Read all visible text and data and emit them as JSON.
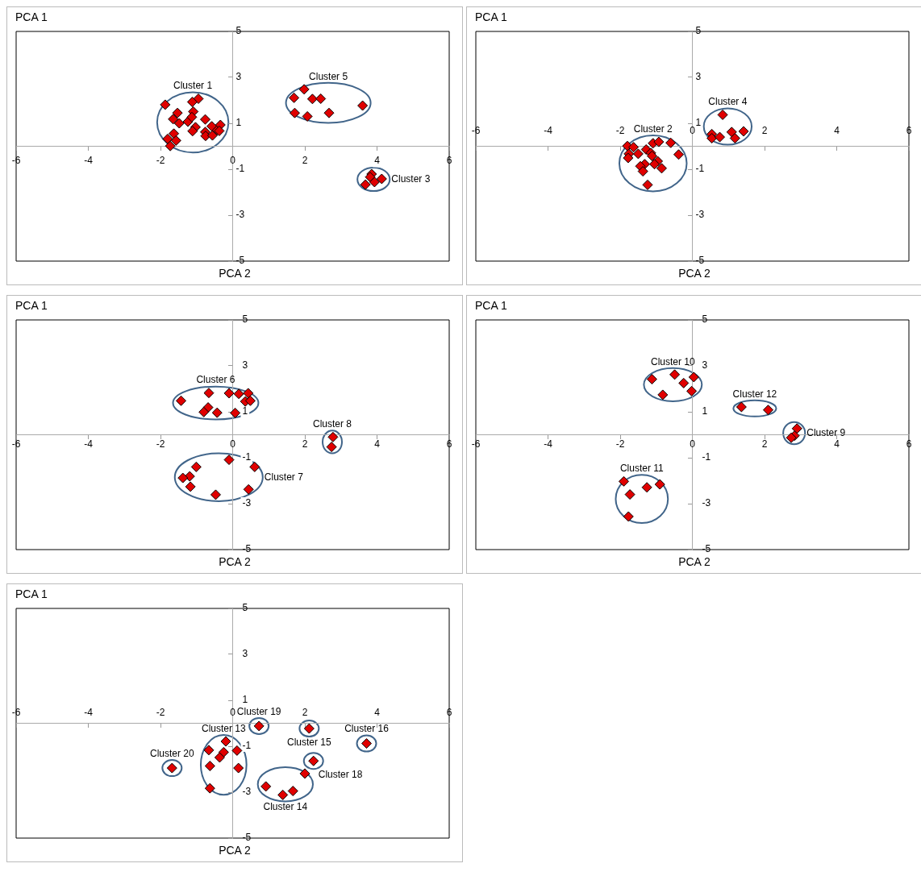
{
  "chart_data": [
    {
      "type": "scatter",
      "xlabel": "PCA 2",
      "ylabel": "PCA 1",
      "xlim": [
        -6,
        6
      ],
      "ylim": [
        -5,
        5
      ],
      "xticks": [
        -6,
        -4,
        -2,
        0,
        2,
        4,
        6
      ],
      "yticks": [
        -5,
        -3,
        -1,
        1,
        3,
        5
      ],
      "marker": "diamond",
      "legend": false,
      "grid": false,
      "series": [
        {
          "name": "Cluster 1",
          "color": "#e00000",
          "x": [
            -1.87,
            -0.95,
            -1.12,
            -1.53,
            -1.09,
            -1.65,
            -1.48,
            -1.24,
            -1.13,
            -0.76,
            -1.03,
            -1.11,
            -1.63,
            -1.8,
            -1.57,
            -1.73,
            -0.76,
            -0.75,
            -0.58,
            -0.56,
            -0.43,
            -0.34,
            -0.37
          ],
          "values": [
            1.81,
            2.07,
            1.93,
            1.45,
            1.51,
            1.18,
            1.0,
            1.07,
            1.27,
            1.17,
            0.83,
            0.66,
            0.55,
            0.32,
            0.25,
            0.01,
            0.62,
            0.45,
            0.87,
            0.47,
            0.7,
            0.93,
            0.67
          ]
        },
        {
          "name": "Cluster 5",
          "color": "#e00000",
          "x": [
            1.7,
            1.98,
            2.21,
            2.44,
            3.6,
            1.72,
            2.07,
            2.67
          ],
          "values": [
            2.11,
            2.48,
            2.06,
            2.07,
            1.77,
            1.45,
            1.3,
            1.45
          ]
        },
        {
          "name": "Cluster 3",
          "color": "#e00000",
          "x": [
            3.85,
            3.81,
            4.13,
            3.93,
            3.68
          ],
          "values": [
            -1.21,
            -1.34,
            -1.42,
            -1.56,
            -1.67
          ]
        }
      ]
    },
    {
      "type": "scatter",
      "xlabel": "PCA 2",
      "ylabel": "PCA 1",
      "xlim": [
        -6,
        6
      ],
      "ylim": [
        -5,
        5
      ],
      "xticks": [
        -6,
        -4,
        -2,
        0,
        2,
        4,
        6
      ],
      "yticks": [
        -5,
        -3,
        -1,
        1,
        3,
        5
      ],
      "marker": "diamond",
      "legend": false,
      "grid": false,
      "series": [
        {
          "name": "Cluster 2",
          "color": "#e00000",
          "x": [
            -1.8,
            -1.63,
            -1.76,
            -1.78,
            -1.5,
            -1.28,
            -1.09,
            -0.93,
            -0.6,
            -1.15,
            -1.12,
            -0.96,
            -0.85,
            -1.05,
            -1.32,
            -1.44,
            -1.37,
            -0.38,
            -1.24
          ],
          "values": [
            0.01,
            -0.04,
            -0.33,
            -0.51,
            -0.33,
            -0.14,
            0.13,
            0.19,
            0.15,
            -0.29,
            -0.42,
            -0.65,
            -0.96,
            -0.78,
            -0.78,
            -0.87,
            -1.09,
            -0.36,
            -1.68
          ]
        },
        {
          "name": "Cluster 4",
          "color": "#e00000",
          "x": [
            0.84,
            0.54,
            0.54,
            0.76,
            1.09,
            1.18,
            1.42
          ],
          "values": [
            1.37,
            0.53,
            0.35,
            0.4,
            0.62,
            0.35,
            0.65
          ]
        }
      ]
    },
    {
      "type": "scatter",
      "xlabel": "PCA 2",
      "ylabel": "PCA 1",
      "xlim": [
        -6,
        6
      ],
      "ylim": [
        -5,
        5
      ],
      "xticks": [
        -6,
        -4,
        -2,
        0,
        2,
        4,
        6
      ],
      "yticks": [
        -5,
        -3,
        -1,
        1,
        3,
        5
      ],
      "marker": "diamond",
      "legend": false,
      "grid": false,
      "series": [
        {
          "name": "Cluster 6",
          "color": "#e00000",
          "x": [
            -1.43,
            -0.66,
            -0.1,
            0.17,
            0.43,
            0.35,
            0.49,
            -0.68,
            -0.8,
            -0.43,
            0.07
          ],
          "values": [
            1.48,
            1.82,
            1.81,
            1.78,
            1.81,
            1.45,
            1.48,
            1.19,
            0.99,
            0.96,
            0.95
          ]
        },
        {
          "name": "Cluster 8",
          "color": "#e00000",
          "x": [
            2.78,
            2.74
          ],
          "values": [
            -0.1,
            -0.53
          ]
        },
        {
          "name": "Cluster 7",
          "color": "#e00000",
          "x": [
            -0.1,
            -1.01,
            0.61,
            -1.19,
            -1.38,
            -1.17,
            0.44,
            -0.47
          ],
          "values": [
            -1.09,
            -1.4,
            -1.4,
            -1.81,
            -1.88,
            -2.26,
            -2.38,
            -2.61
          ]
        }
      ]
    },
    {
      "type": "scatter",
      "xlabel": "PCA 2",
      "ylabel": "PCA 1",
      "xlim": [
        -6,
        6
      ],
      "ylim": [
        -5,
        5
      ],
      "xticks": [
        -6,
        -4,
        -2,
        0,
        2,
        4,
        6
      ],
      "yticks": [
        -5,
        -3,
        -1,
        1,
        3,
        5
      ],
      "marker": "diamond",
      "legend": false,
      "grid": false,
      "series": [
        {
          "name": "Cluster 10",
          "color": "#e00000",
          "x": [
            -1.12,
            -0.49,
            0.04,
            -0.24,
            -0.02,
            -0.82
          ],
          "values": [
            2.42,
            2.62,
            2.51,
            2.25,
            1.9,
            1.74
          ]
        },
        {
          "name": "Cluster 12",
          "color": "#e00000",
          "x": [
            1.36,
            2.1
          ],
          "values": [
            1.21,
            1.08
          ]
        },
        {
          "name": "Cluster 9",
          "color": "#e00000",
          "x": [
            2.9,
            2.83,
            2.74
          ],
          "values": [
            0.27,
            -0.04,
            -0.13
          ]
        },
        {
          "name": "Cluster 11",
          "color": "#e00000",
          "x": [
            -1.9,
            -1.26,
            -0.9,
            -1.73,
            -1.77
          ],
          "values": [
            -2.03,
            -2.29,
            -2.16,
            -2.6,
            -3.56
          ]
        }
      ]
    },
    {
      "type": "scatter",
      "xlabel": "PCA 2",
      "ylabel": "PCA 1",
      "xlim": [
        -6,
        6
      ],
      "ylim": [
        -5,
        5
      ],
      "xticks": [
        -6,
        -4,
        -2,
        0,
        2,
        4,
        6
      ],
      "yticks": [
        -5,
        -3,
        -1,
        1,
        3,
        5
      ],
      "marker": "diamond",
      "legend": false,
      "grid": false,
      "series": [
        {
          "name": "Cluster 19",
          "color": "#e00000",
          "x": [
            0.73
          ],
          "values": [
            -0.12
          ]
        },
        {
          "name": "Cluster 15",
          "color": "#e00000",
          "x": [
            2.12
          ],
          "values": [
            -0.23
          ]
        },
        {
          "name": "Cluster 16",
          "color": "#e00000",
          "x": [
            3.71
          ],
          "values": [
            -0.88
          ]
        },
        {
          "name": "Cluster 18",
          "color": "#e00000",
          "x": [
            2.24
          ],
          "values": [
            -1.64
          ]
        },
        {
          "name": "Cluster 20",
          "color": "#e00000",
          "x": [
            -1.68
          ],
          "values": [
            -1.95
          ]
        },
        {
          "name": "Cluster 13",
          "color": "#e00000",
          "x": [
            -0.19,
            -0.66,
            -0.25,
            0.12,
            -0.36,
            -0.63,
            0.16,
            -0.63
          ],
          "values": [
            -0.79,
            -1.17,
            -1.26,
            -1.19,
            -1.49,
            -1.86,
            -1.95,
            -2.83
          ]
        },
        {
          "name": "Cluster 14",
          "color": "#e00000",
          "x": [
            2.0,
            0.92,
            1.67,
            1.39
          ],
          "values": [
            -2.19,
            -2.75,
            -2.95,
            -3.12
          ]
        }
      ]
    }
  ]
}
